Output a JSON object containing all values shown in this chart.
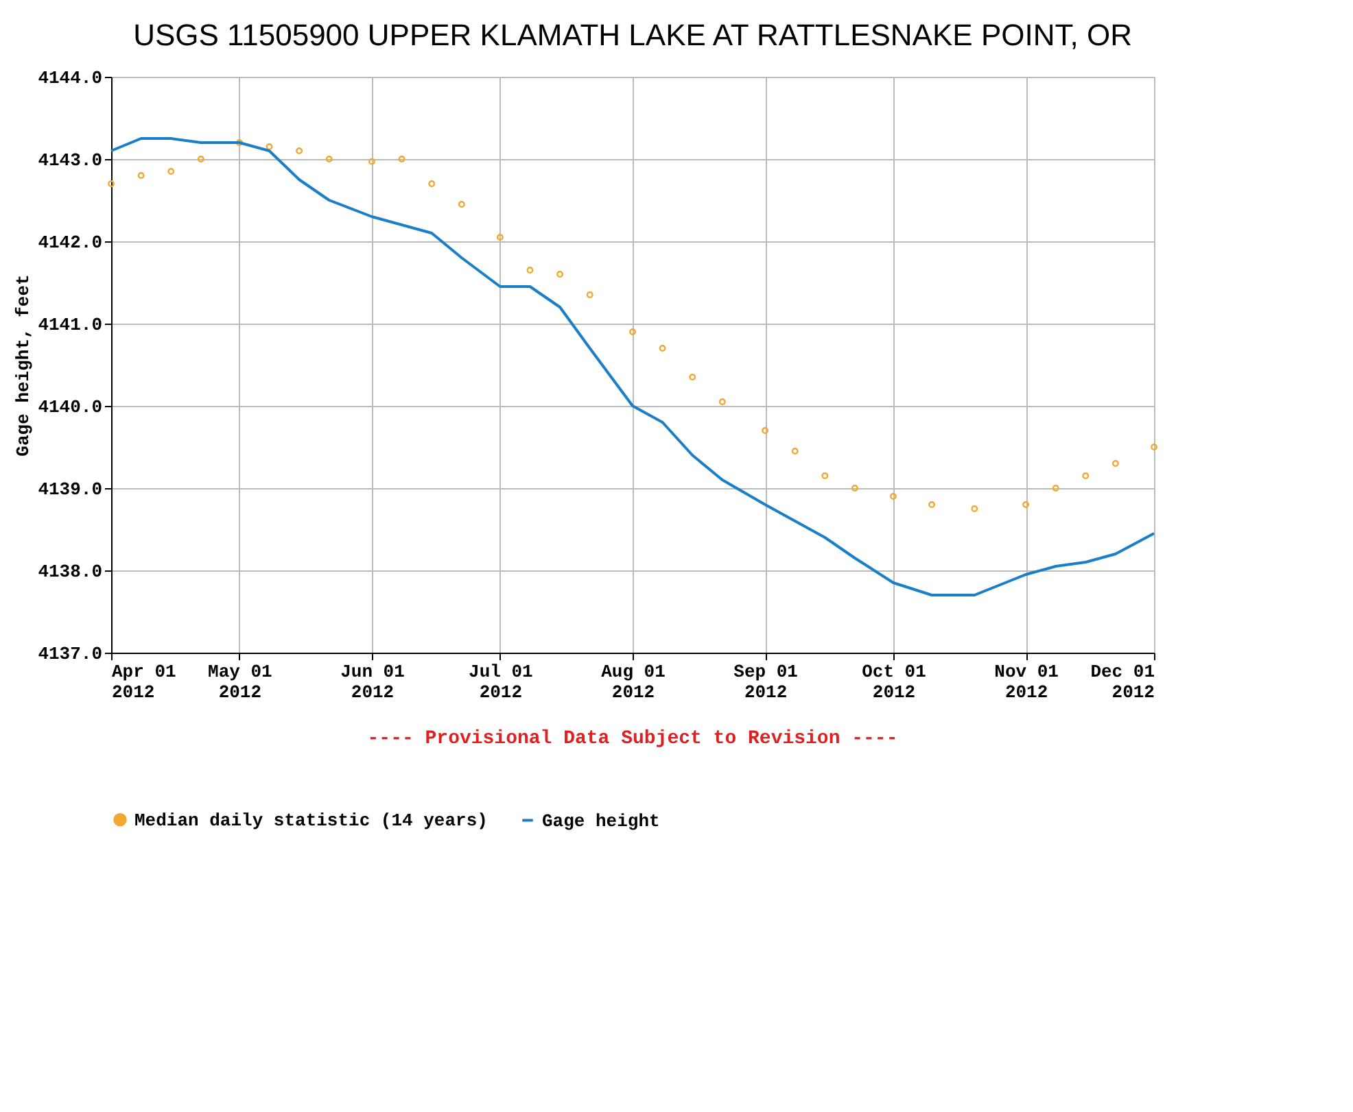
{
  "chart_data": {
    "type": "line",
    "title": "USGS 11505900 UPPER KLAMATH LAKE AT RATTLESNAKE POINT, OR",
    "ylabel": "Gage height, feet",
    "x": [
      "2012-04-01",
      "2012-04-08",
      "2012-04-15",
      "2012-04-22",
      "2012-05-01",
      "2012-05-08",
      "2012-05-15",
      "2012-05-22",
      "2012-06-01",
      "2012-06-08",
      "2012-06-15",
      "2012-06-22",
      "2012-07-01",
      "2012-07-08",
      "2012-07-15",
      "2012-07-22",
      "2012-08-01",
      "2012-08-08",
      "2012-08-15",
      "2012-08-22",
      "2012-09-01",
      "2012-09-08",
      "2012-09-15",
      "2012-09-22",
      "2012-10-01",
      "2012-10-10",
      "2012-10-20",
      "2012-11-01",
      "2012-11-08",
      "2012-11-15",
      "2012-11-22",
      "2012-12-01"
    ],
    "series": [
      {
        "name": "Median daily statistic (14 years)",
        "type": "scatter",
        "marker": "circle",
        "color": "#f0a830",
        "values": [
          4142.7,
          4142.8,
          4142.85,
          4143.0,
          4143.2,
          4143.15,
          4143.1,
          4143.0,
          4142.97,
          4143.0,
          4142.7,
          4142.45,
          4142.05,
          4141.65,
          4141.6,
          4141.35,
          4140.9,
          4140.7,
          4140.35,
          4140.05,
          4139.7,
          4139.45,
          4139.15,
          4139.0,
          4138.9,
          4138.8,
          4138.75,
          4138.8,
          4139.0,
          4139.15,
          4139.3,
          4139.5
        ]
      },
      {
        "name": "Gage height",
        "type": "line",
        "color": "#1a7fc8",
        "values": [
          4143.1,
          4143.25,
          4143.25,
          4143.2,
          4143.2,
          4143.1,
          4142.75,
          4142.5,
          4142.3,
          4142.2,
          4142.1,
          4141.8,
          4141.45,
          4141.45,
          4141.2,
          4140.7,
          4140.0,
          4139.8,
          4139.4,
          4139.1,
          4138.8,
          4138.6,
          4138.4,
          4138.15,
          4137.85,
          4137.7,
          4137.7,
          4137.95,
          4138.05,
          4138.1,
          4138.2,
          4138.45
        ]
      }
    ],
    "xlim": [
      "2012-04-01",
      "2012-12-01"
    ],
    "xticks": [
      {
        "value": "2012-04-01",
        "label": "Apr 01\n2012"
      },
      {
        "value": "2012-05-01",
        "label": "May 01\n2012"
      },
      {
        "value": "2012-06-01",
        "label": "Jun 01\n2012"
      },
      {
        "value": "2012-07-01",
        "label": "Jul 01\n2012"
      },
      {
        "value": "2012-08-01",
        "label": "Aug 01\n2012"
      },
      {
        "value": "2012-09-01",
        "label": "Sep 01\n2012"
      },
      {
        "value": "2012-10-01",
        "label": "Oct 01\n2012"
      },
      {
        "value": "2012-11-01",
        "label": "Nov 01\n2012"
      },
      {
        "value": "2012-12-01",
        "label": "Dec 01\n2012"
      }
    ],
    "ylim": [
      4137,
      4144
    ],
    "yticks": [
      {
        "value": 4137,
        "label": "4137.0"
      },
      {
        "value": 4138,
        "label": "4138.0"
      },
      {
        "value": 4139,
        "label": "4139.0"
      },
      {
        "value": 4140,
        "label": "4140.0"
      },
      {
        "value": 4141,
        "label": "4141.0"
      },
      {
        "value": 4142,
        "label": "4142.0"
      },
      {
        "value": 4143,
        "label": "4143.0"
      },
      {
        "value": 4144,
        "label": "4144.0"
      }
    ],
    "grid": true,
    "legend": "bottom",
    "annotations": [
      "---- Provisional Data Subject to Revision ----"
    ]
  }
}
